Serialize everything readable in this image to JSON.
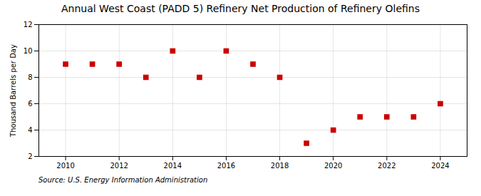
{
  "chart_data": {
    "type": "scatter",
    "title": "Annual West Coast (PADD 5) Refinery Net Production of Refinery Olefins",
    "ylabel": "Thousand Barrels per Day",
    "caption": "Source: U.S. Energy Information Administration",
    "x": [
      2010,
      2011,
      2012,
      2013,
      2014,
      2015,
      2016,
      2017,
      2018,
      2019,
      2020,
      2021,
      2022,
      2023,
      2024
    ],
    "values": [
      9,
      9,
      9,
      8,
      10,
      8,
      10,
      9,
      8,
      3,
      4,
      5,
      5,
      5,
      6
    ],
    "color": "#cc0000",
    "marker": "square",
    "xlim": [
      2009.0,
      2025.0
    ],
    "xticks": [
      2010,
      2012,
      2014,
      2016,
      2018,
      2020,
      2022,
      2024
    ],
    "ylim": [
      2,
      12
    ],
    "yticks": [
      2,
      4,
      6,
      8,
      10,
      12
    ],
    "grid": true
  }
}
